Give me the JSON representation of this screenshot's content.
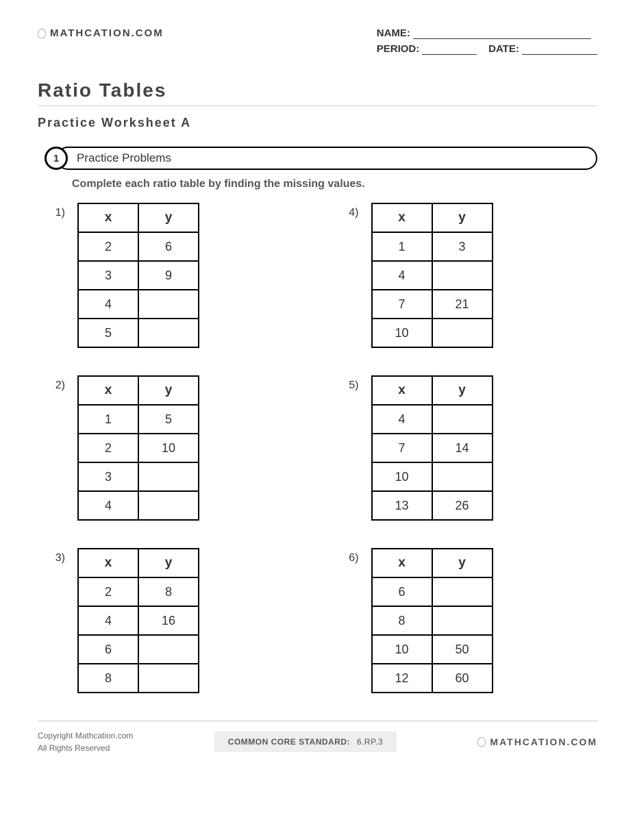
{
  "logo_text": "MATHCATION.COM",
  "fields": {
    "name": "NAME:",
    "period": "PERIOD:",
    "date": "DATE:"
  },
  "title": "Ratio Tables",
  "subtitle": "Practice Worksheet A",
  "section": {
    "num": "1",
    "label": "Practice Problems"
  },
  "instructions": "Complete each ratio table by finding the missing values.",
  "headers": {
    "x": "x",
    "y": "y"
  },
  "problems": [
    {
      "num": "1)",
      "rows": [
        [
          "2",
          "6"
        ],
        [
          "3",
          "9"
        ],
        [
          "4",
          ""
        ],
        [
          "5",
          ""
        ]
      ]
    },
    {
      "num": "4)",
      "rows": [
        [
          "1",
          "3"
        ],
        [
          "4",
          ""
        ],
        [
          "7",
          "21"
        ],
        [
          "10",
          ""
        ]
      ]
    },
    {
      "num": "2)",
      "rows": [
        [
          "1",
          "5"
        ],
        [
          "2",
          "10"
        ],
        [
          "3",
          ""
        ],
        [
          "4",
          ""
        ]
      ]
    },
    {
      "num": "5)",
      "rows": [
        [
          "4",
          ""
        ],
        [
          "7",
          "14"
        ],
        [
          "10",
          ""
        ],
        [
          "13",
          "26"
        ]
      ]
    },
    {
      "num": "3)",
      "rows": [
        [
          "2",
          "8"
        ],
        [
          "4",
          "16"
        ],
        [
          "6",
          ""
        ],
        [
          "8",
          ""
        ]
      ]
    },
    {
      "num": "6)",
      "rows": [
        [
          "6",
          ""
        ],
        [
          "8",
          ""
        ],
        [
          "10",
          "50"
        ],
        [
          "12",
          "60"
        ]
      ]
    }
  ],
  "footer": {
    "copyright1": "Copyright Mathcation.com",
    "copyright2": "All Rights Reserved",
    "standard_label": "COMMON CORE STANDARD:",
    "standard_value": "6.RP.3"
  }
}
